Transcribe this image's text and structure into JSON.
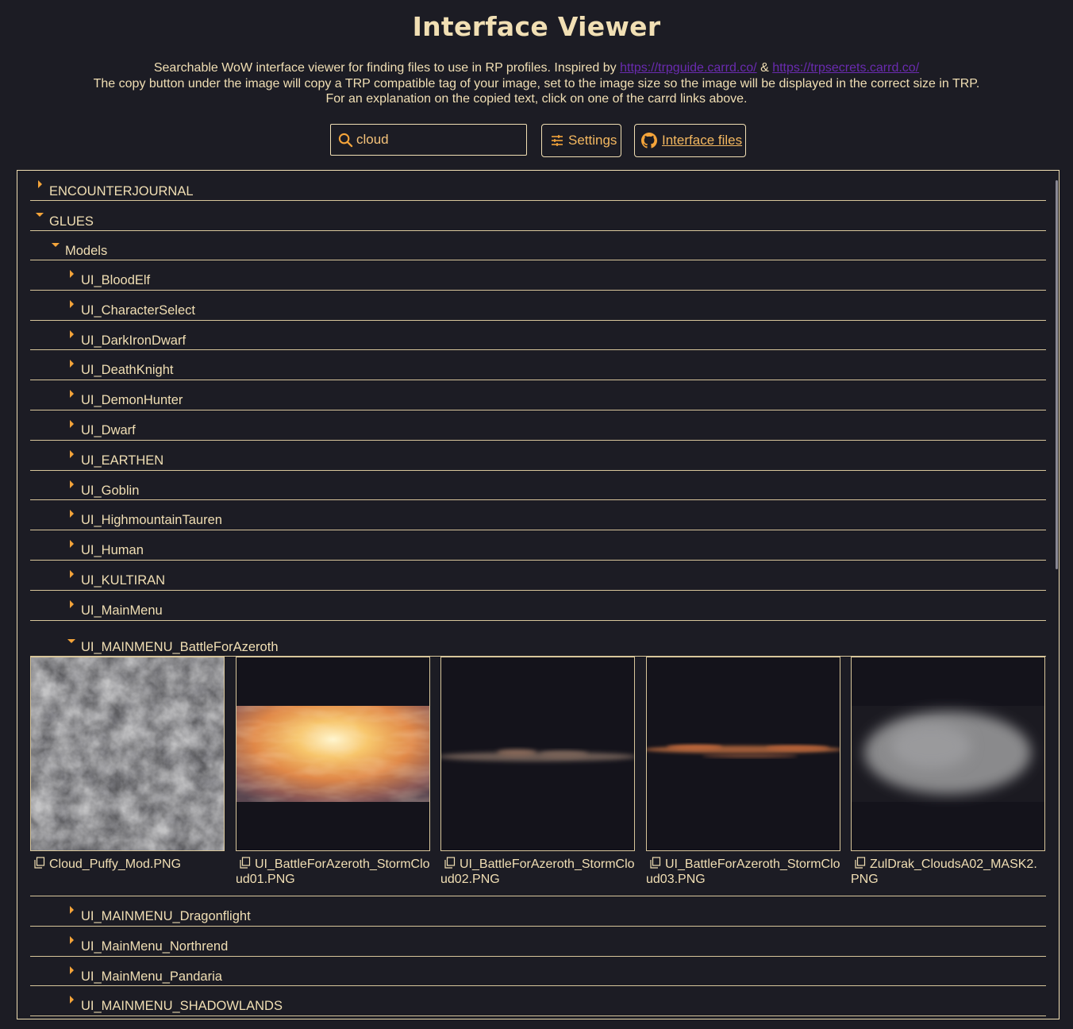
{
  "header": {
    "title": "Interface Viewer",
    "intro_line1_prefix": "Searchable WoW interface viewer for finding files to use in RP profiles. Inspired by ",
    "link1": "https://trpguide.carrd.co/",
    "amp": " & ",
    "link2": "https://trpsecrets.carrd.co/",
    "intro_line2": "The copy button under the image will copy a TRP compatible tag of your image, set to the image size so the image will be displayed in the correct size in TRP.",
    "intro_line3": "For an explanation on the copied text, click on one of the carrd links above."
  },
  "controls": {
    "search_value": "cloud",
    "settings_label": "Settings",
    "files_label": "Interface files"
  },
  "colors": {
    "background": "#1c1c24",
    "text": "#f1dfb4",
    "accent": "#f4a43a",
    "link": "#6a2bb0"
  },
  "tree": {
    "top": [
      {
        "label": "ENCOUNTERJOURNAL",
        "expanded": false
      },
      {
        "label": "GLUES",
        "expanded": true
      }
    ],
    "models_label": "Models",
    "models_children_before": [
      "UI_BloodElf",
      "UI_CharacterSelect",
      "UI_DarkIronDwarf",
      "UI_DeathKnight",
      "UI_DemonHunter",
      "UI_Dwarf",
      "UI_EARTHEN",
      "UI_Goblin",
      "UI_HighmountainTauren",
      "UI_Human",
      "UI_KULTIRAN",
      "UI_MainMenu"
    ],
    "expanded_folder": "UI_MAINMENU_BattleForAzeroth",
    "files": [
      {
        "name": "Cloud_Puffy_Mod.PNG",
        "thumb": "puffy-clouds"
      },
      {
        "name": "UI_BattleForAzeroth_StormCloud01.PNG",
        "thumb": "sunset-clouds"
      },
      {
        "name": "UI_BattleForAzeroth_StormCloud02.PNG",
        "thumb": "thin-cloud-band"
      },
      {
        "name": "UI_BattleForAzeroth_StormCloud03.PNG",
        "thumb": "orange-cloud-band"
      },
      {
        "name": "ZulDrak_CloudsA02_MASK2.PNG",
        "thumb": "blurred-cloud-mask"
      }
    ],
    "models_children_after": [
      "UI_MAINMENU_Dragonflight",
      "UI_MainMenu_Northrend",
      "UI_MainMenu_Pandaria",
      "UI_MAINMENU_SHADOWLANDS"
    ]
  }
}
